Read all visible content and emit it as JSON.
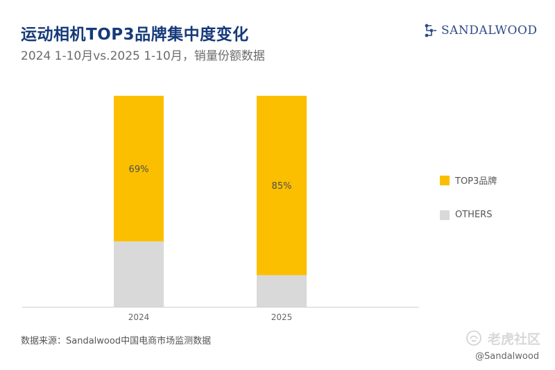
{
  "header": {
    "title": "运动相机TOP3品牌集中度变化",
    "subtitle": "2024 1-10月vs.2025 1-10月，销量份额数据",
    "logo_text": "SANDALWOOD",
    "logo_icon": "sandalwood-logo-mark"
  },
  "chart_data": {
    "type": "bar",
    "stacked": true,
    "percent_stacked": true,
    "categories": [
      "2024",
      "2025"
    ],
    "series": [
      {
        "name": "TOP3品牌",
        "values": [
          69,
          85
        ],
        "labels": [
          "69%",
          "85%"
        ],
        "color": "#fbbf00"
      },
      {
        "name": "OTHERS",
        "values": [
          31,
          15
        ],
        "color": "#d9d9d9"
      }
    ],
    "ylim": [
      0,
      100
    ],
    "grid": false,
    "legend_position": "right"
  },
  "footer": {
    "source": "数据来源：Sandalwood中国电商市场监测数据"
  },
  "watermark": {
    "text": "老虎社区",
    "handle": "@Sandalwood",
    "icon": "tiger-community-icon"
  }
}
